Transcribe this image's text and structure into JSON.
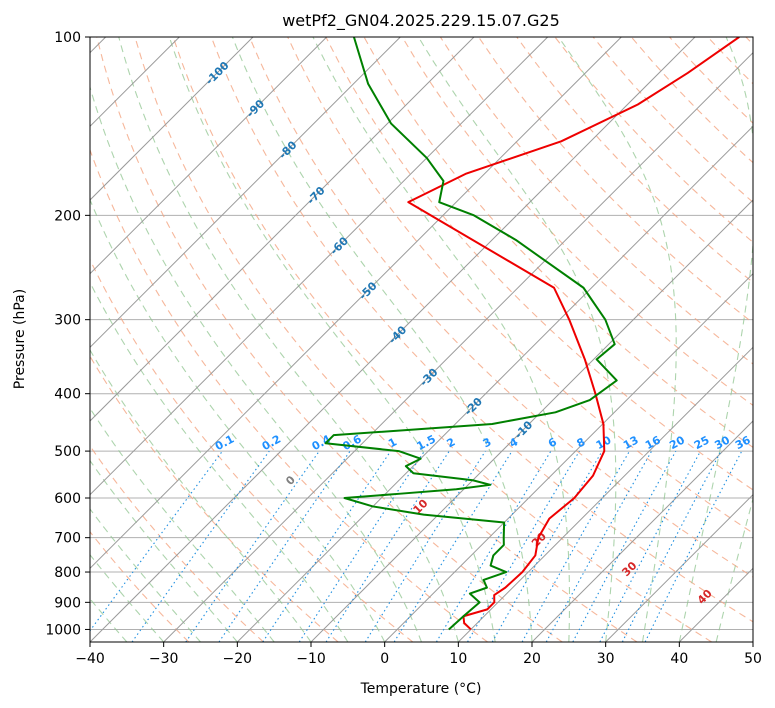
{
  "chart_data": {
    "type": "line",
    "title": "wetPf2_GN04.2025.229.15.07.G25",
    "xlabel": "Temperature (°C)",
    "ylabel": "Pressure (hPa)",
    "xlim": [
      -40,
      50
    ],
    "ylim": [
      1050,
      100
    ],
    "y_scale": "log",
    "x_ticks": [
      "−40",
      "−30",
      "−20",
      "−10",
      "0",
      "10",
      "20",
      "30",
      "40",
      "50"
    ],
    "x_tick_values": [
      -40,
      -30,
      -20,
      -10,
      0,
      10,
      20,
      30,
      40,
      50
    ],
    "y_ticks": [
      "100",
      "200",
      "300",
      "400",
      "500",
      "600",
      "700",
      "800",
      "900",
      "1000"
    ],
    "y_tick_values": [
      100,
      200,
      300,
      400,
      500,
      600,
      700,
      800,
      900,
      1000
    ],
    "grid": true,
    "isotherm_skew": 45,
    "colors": {
      "temperature": "#ee0000",
      "dewpoint": "#008000",
      "isotherm": "#9a9a9a",
      "dry_adiabat": "#f4a582",
      "moist_adiabat": "#92c592",
      "mixing_ratio": "#1f8fe0",
      "isotherm_label": "#1f77b4",
      "moist_label_red": "#d62728",
      "moist_label_zero": "#808080",
      "mixing_label": "#1e90ff"
    },
    "series": [
      {
        "role": "temperature",
        "p": [
          1000,
          975,
          950,
          925,
          900,
          875,
          850,
          800,
          750,
          700,
          650,
          600,
          550,
          500,
          450,
          400,
          350,
          300,
          265,
          190,
          170,
          150,
          130,
          115,
          100
        ],
        "t": [
          10,
          8.2,
          7.2,
          9.5,
          9.5,
          8.5,
          9,
          9.2,
          8.7,
          6.7,
          5.6,
          6.2,
          5.7,
          3.9,
          0.1,
          -5.1,
          -11.2,
          -18.7,
          -25.1,
          -56.5,
          -52.5,
          -44,
          -38.6,
          -36.1,
          -34
        ]
      },
      {
        "role": "dewpoint",
        "p": [
          1000,
          950,
          900,
          870,
          850,
          825,
          800,
          780,
          750,
          720,
          700,
          660,
          640,
          620,
          600,
          590,
          580,
          570,
          560,
          545,
          530,
          515,
          500,
          485,
          470,
          450,
          430,
          410,
          380,
          350,
          330,
          300,
          265,
          220,
          200,
          190,
          175,
          160,
          140,
          120,
          100
        ],
        "t": [
          7,
          7.2,
          7.5,
          5,
          6.5,
          5,
          7,
          4,
          3,
          3,
          2,
          0,
          -12,
          -20,
          -25,
          -18,
          -11,
          -7,
          -10,
          -19,
          -21,
          -20,
          -24,
          -35,
          -35,
          -15,
          -8,
          -5,
          -4,
          -9.6,
          -9.2,
          -13.8,
          -21.1,
          -36.8,
          -45.8,
          -52.3,
          -54.6,
          -60,
          -69.5,
          -78,
          -86.3
        ]
      }
    ],
    "isotherm_labels": [
      "-100",
      "-90",
      "-80",
      "-70",
      "-60",
      "-50",
      "-40",
      "-30",
      "-20",
      "-10"
    ],
    "moist_adiabat_labels": [
      "0",
      "10",
      "20",
      "30",
      "40"
    ],
    "mixing_ratio_labels": [
      "0.1",
      "0.2",
      "0.4",
      "0.6",
      "1",
      "1.5",
      "2",
      "3",
      "4",
      "6",
      "8",
      "10",
      "13",
      "16",
      "20",
      "25",
      "30",
      "36"
    ]
  }
}
